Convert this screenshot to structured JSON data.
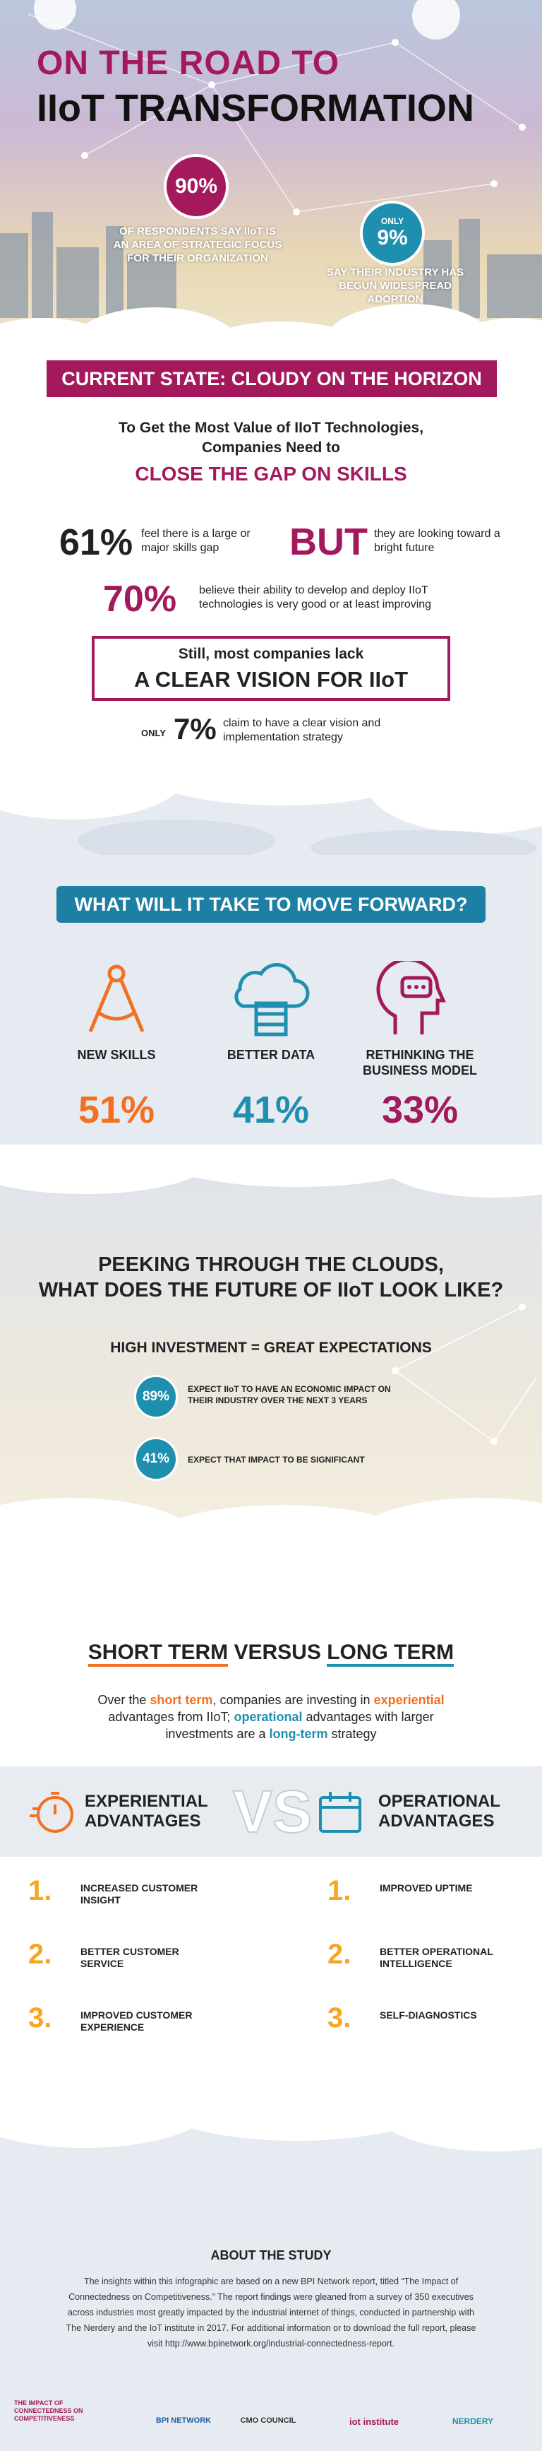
{
  "header": {
    "title_line1": "ON THE ROAD TO",
    "title_line2": "IIoT TRANSFORMATION",
    "stat1": {
      "value": "90%",
      "text": "OF RESPONDENTS SAY IIoT IS AN AREA OF STRATEGIC FOCUS FOR THEIR ORGANIZATION"
    },
    "stat2": {
      "prefix": "ONLY",
      "value": "9%",
      "text": "SAY THEIR INDUSTRY HAS BEGUN WIDESPREAD ADOPTION"
    }
  },
  "current_state": {
    "banner": "CURRENT STATE: CLOUDY ON THE HORIZON",
    "intro_line1": "To Get the Most Value of IIoT Technologies,",
    "intro_line2": "Companies Need to",
    "highlight": "CLOSE THE GAP ON SKILLS",
    "stat1": {
      "value": "61%",
      "text": "feel there is a large or major skills gap"
    },
    "but": {
      "word": "BUT",
      "text": "they are looking toward a bright future"
    },
    "stat2": {
      "value": "70%",
      "text": "believe their ability to develop and deploy IIoT technologies is very good or at least improving"
    },
    "vision": {
      "line1": "Still, most companies lack",
      "line2": "A CLEAR VISION FOR IIoT"
    },
    "stat3": {
      "prefix": "ONLY",
      "value": "7%",
      "text": "claim to have a clear vision and implementation strategy"
    }
  },
  "forward": {
    "banner": "WHAT WILL IT TAKE TO MOVE FORWARD?",
    "items": [
      {
        "label": "NEW SKILLS",
        "value": "51%"
      },
      {
        "label": "BETTER DATA",
        "value": "41%"
      },
      {
        "label": "RETHINKING THE BUSINESS MODEL",
        "value": "33%"
      }
    ]
  },
  "future": {
    "title_line1": "PEEKING THROUGH THE CLOUDS,",
    "title_line2": "WHAT DOES THE FUTURE OF IIoT LOOK LIKE?",
    "subtitle": "HIGH INVESTMENT = GREAT EXPECTATIONS",
    "stats": [
      {
        "value": "89%",
        "text": "EXPECT IIoT TO HAVE AN ECONOMIC IMPACT ON THEIR INDUSTRY OVER THE NEXT 3 YEARS"
      },
      {
        "value": "41%",
        "text": "EXPECT THAT IMPACT TO BE SIGNIFICANT"
      }
    ]
  },
  "terms": {
    "title": {
      "short": "SHORT TERM",
      "versus": "VERSUS",
      "long": "LONG TERM"
    },
    "description": [
      "Over the ",
      "short term",
      ", companies are investing in ",
      "experiential",
      " advantages from IIoT; ",
      "operational",
      " advantages with larger investments are a ",
      "long-term",
      " strategy"
    ],
    "vs": "VS",
    "columns": [
      {
        "title_line1": "EXPERIENTIAL",
        "title_line2": "ADVANTAGES",
        "items": [
          {
            "number": "1.",
            "text": "INCREASED CUSTOMER INSIGHT"
          },
          {
            "number": "2.",
            "text": "BETTER CUSTOMER SERVICE"
          },
          {
            "number": "3.",
            "text": "IMPROVED CUSTOMER EXPERIENCE"
          }
        ]
      },
      {
        "title_line1": "OPERATIONAL",
        "title_line2": "ADVANTAGES",
        "items": [
          {
            "number": "1.",
            "text": "IMPROVED UPTIME"
          },
          {
            "number": "2.",
            "text": "BETTER OPERATIONAL INTELLIGENCE"
          },
          {
            "number": "3.",
            "text": "SELF-DIAGNOSTICS"
          }
        ]
      }
    ]
  },
  "about": {
    "title": "ABOUT THE STUDY",
    "text": "The insights within this infographic are based on a new BPI Network report, titled “The Impact of Connectedness on Competitiveness.” The report findings were gleaned from a survey of 350 executives across industries most greatly impacted by the industrial internet of things, conducted in partnership with The Nerdery and the IoT institute in 2017. For additional information or to download the full report, please visit http://www.bpinetwork.org/industrial-connectedness-report."
  },
  "footer": {
    "logos": [
      "THE IMPACT OF CONNECTEDNESS ON COMPETITIVENESS",
      "BPI NETWORK",
      "CMO COUNCIL",
      "iot institute",
      "NERDERY"
    ]
  }
}
